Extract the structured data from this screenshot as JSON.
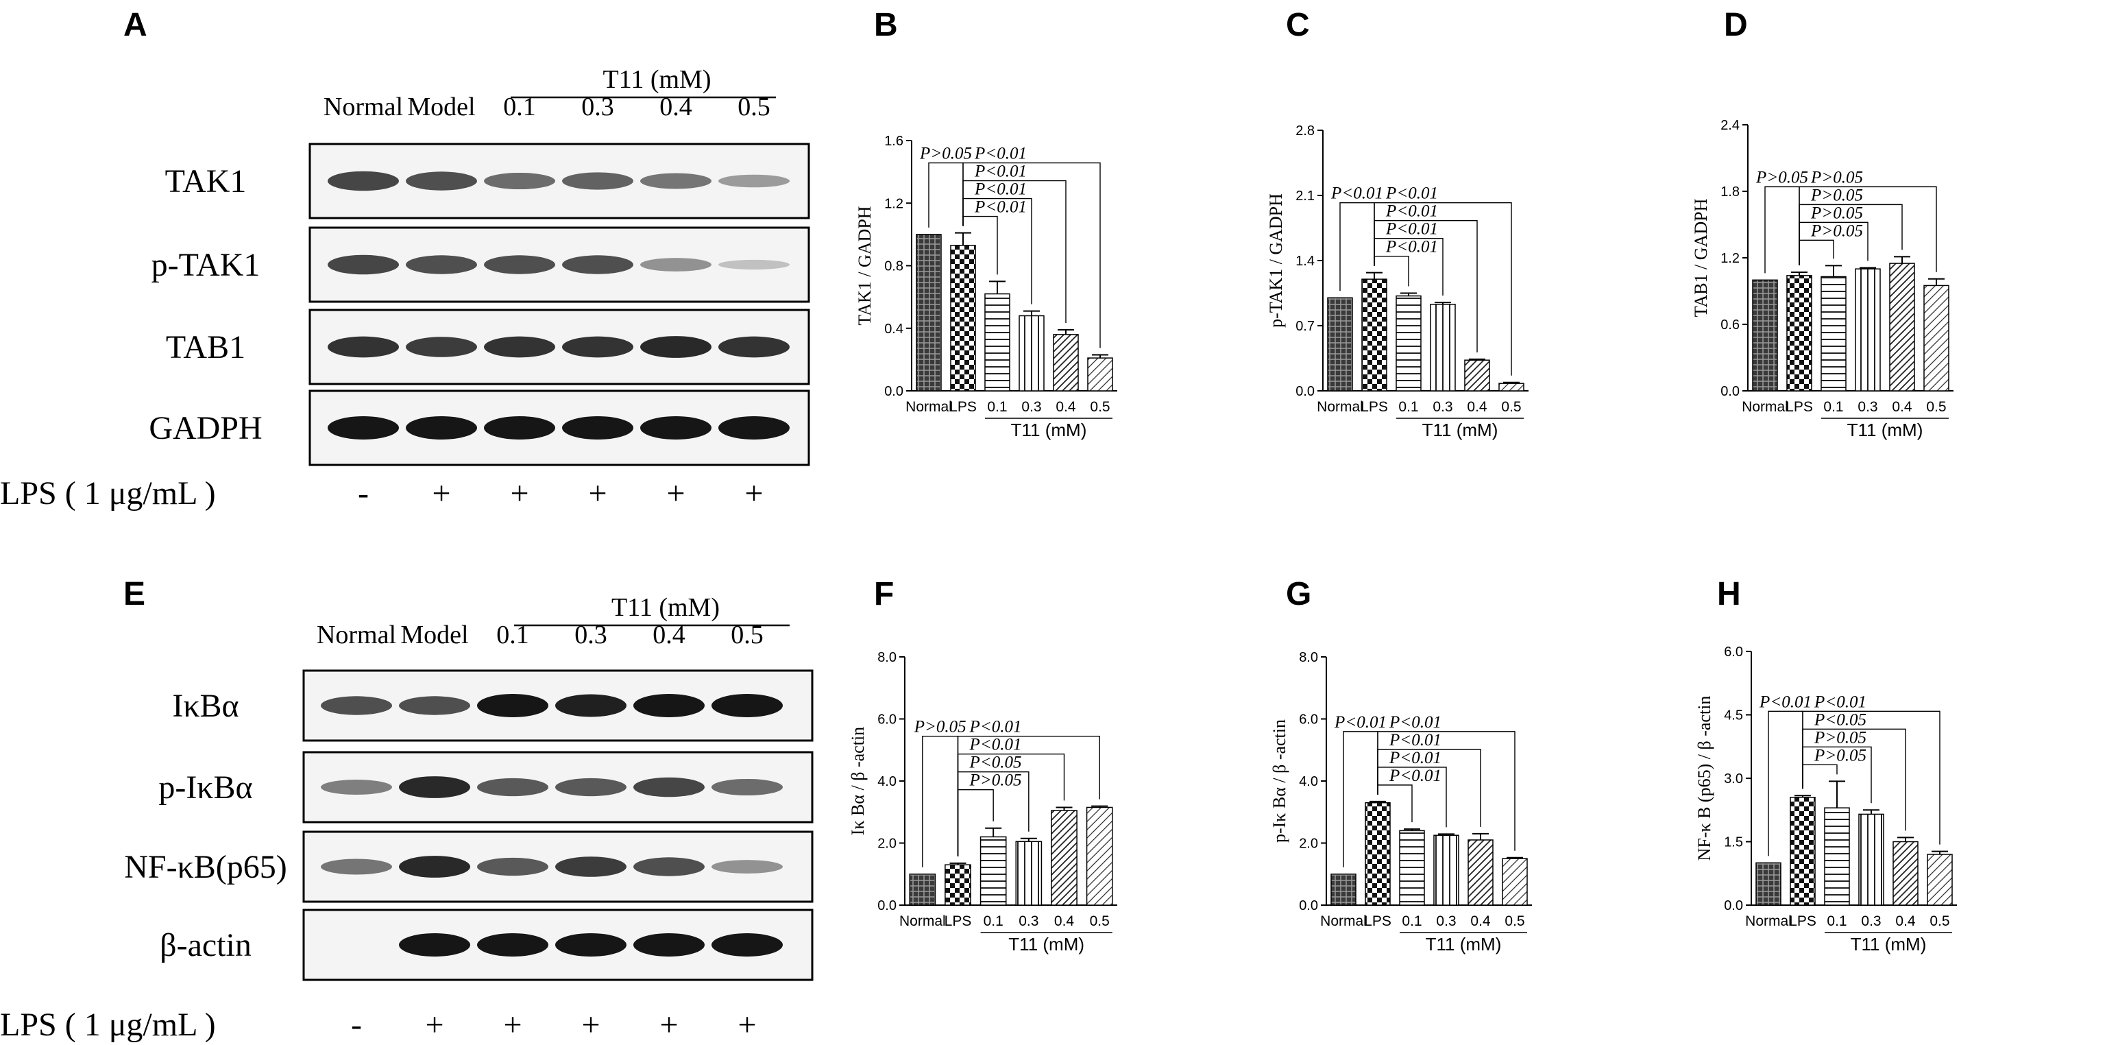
{
  "figure": {
    "panels": [
      {
        "letter": "A",
        "blot": {
          "group_label": "T11 (mM)",
          "columns": [
            "Normal",
            "Model",
            "0.1",
            "0.3",
            "0.4",
            "0.5"
          ],
          "rows": [
            {
              "label": "TAK1",
              "intensity": [
                0.75,
                0.7,
                0.55,
                0.6,
                0.5,
                0.3
              ]
            },
            {
              "label": "p-TAK1",
              "intensity": [
                0.75,
                0.7,
                0.7,
                0.7,
                0.35,
                0.1
              ]
            },
            {
              "label": "TAB1",
              "intensity": [
                0.85,
                0.8,
                0.85,
                0.85,
                0.9,
                0.85
              ]
            },
            {
              "label": "GADPH",
              "intensity": [
                1.0,
                1.0,
                1.0,
                1.0,
                1.0,
                1.0
              ]
            }
          ],
          "treatment_label": "LPS ( 1 μg/mL )",
          "treatment_signs": [
            "-",
            "+",
            "+",
            "+",
            "+",
            "+"
          ]
        }
      },
      {
        "letter": "E",
        "blot": {
          "group_label": "T11 (mM)",
          "columns": [
            "Normal",
            "Model",
            "0.1",
            "0.3",
            "0.4",
            "0.5"
          ],
          "rows": [
            {
              "label": "IκBα",
              "intensity": [
                0.7,
                0.7,
                1.0,
                0.95,
                1.0,
                1.0
              ]
            },
            {
              "label": "p-IκBα",
              "intensity": [
                0.45,
                0.9,
                0.65,
                0.65,
                0.75,
                0.55
              ]
            },
            {
              "label": "NF-κB(p65)",
              "intensity": [
                0.5,
                0.9,
                0.65,
                0.8,
                0.7,
                0.35
              ]
            },
            {
              "label": "β-actin",
              "intensity": [
                0.0,
                1.0,
                1.0,
                1.0,
                1.0,
                1.0
              ]
            }
          ],
          "treatment_label": "LPS ( 1 μg/mL )",
          "treatment_signs": [
            "-",
            "+",
            "+",
            "+",
            "+",
            "+"
          ]
        }
      }
    ]
  },
  "chart_data": [
    {
      "letter": "B",
      "type": "bar",
      "categories": [
        "Normal",
        "LPS",
        "0.1",
        "0.3",
        "0.4",
        "0.5"
      ],
      "values": [
        1.0,
        0.93,
        0.62,
        0.48,
        0.36,
        0.21
      ],
      "errors": [
        0,
        0.08,
        0.08,
        0.03,
        0.03,
        0.02
      ],
      "ylabel": "TAK1 / GADPH",
      "ylim": [
        0,
        1.6
      ],
      "yticks": [
        "0.0",
        "0.4",
        "0.8",
        "1.2",
        "1.6"
      ],
      "group_label": "T11 (mM)",
      "annotations": [
        {
          "from": "Normal",
          "to": "LPS",
          "text": "P>0.05"
        },
        {
          "from": "LPS",
          "to": "0.1",
          "text": "P<0.01"
        },
        {
          "from": "LPS",
          "to": "0.3",
          "text": "P<0.01"
        },
        {
          "from": "LPS",
          "to": "0.4",
          "text": "P<0.01"
        },
        {
          "from": "LPS",
          "to": "0.5",
          "text": "P<0.01"
        }
      ]
    },
    {
      "letter": "C",
      "type": "bar",
      "categories": [
        "Normal",
        "LPS",
        "0.1",
        "0.3",
        "0.4",
        "0.5"
      ],
      "values": [
        1.0,
        1.2,
        1.02,
        0.93,
        0.33,
        0.08
      ],
      "errors": [
        0,
        0.07,
        0.03,
        0.02,
        0.01,
        0.01
      ],
      "ylabel": "p-TAK1 / GADPH",
      "ylim": [
        0,
        2.8
      ],
      "yticks": [
        "0.0",
        "0.7",
        "1.4",
        "2.1",
        "2.8"
      ],
      "group_label": "T11 (mM)",
      "annotations": [
        {
          "from": "Normal",
          "to": "LPS",
          "text": "P<0.01"
        },
        {
          "from": "LPS",
          "to": "0.1",
          "text": "P<0.01"
        },
        {
          "from": "LPS",
          "to": "0.3",
          "text": "P<0.01"
        },
        {
          "from": "LPS",
          "to": "0.4",
          "text": "P<0.01"
        },
        {
          "from": "LPS",
          "to": "0.5",
          "text": "P<0.01"
        }
      ]
    },
    {
      "letter": "D",
      "type": "bar",
      "categories": [
        "Normal",
        "LPS",
        "0.1",
        "0.3",
        "0.4",
        "0.5"
      ],
      "values": [
        1.0,
        1.04,
        1.03,
        1.1,
        1.15,
        0.95
      ],
      "errors": [
        0,
        0.03,
        0.1,
        0.01,
        0.06,
        0.06
      ],
      "ylabel": "TAB1 / GADPH",
      "ylim": [
        0,
        2.4
      ],
      "yticks": [
        "0.0",
        "0.6",
        "1.2",
        "1.8",
        "2.4"
      ],
      "group_label": "T11 (mM)",
      "annotations": [
        {
          "from": "Normal",
          "to": "LPS",
          "text": "P>0.05"
        },
        {
          "from": "LPS",
          "to": "0.1",
          "text": "P>0.05"
        },
        {
          "from": "LPS",
          "to": "0.3",
          "text": "P>0.05"
        },
        {
          "from": "LPS",
          "to": "0.4",
          "text": "P>0.05"
        },
        {
          "from": "LPS",
          "to": "0.5",
          "text": "P>0.05"
        }
      ]
    },
    {
      "letter": "F",
      "type": "bar",
      "categories": [
        "Normal",
        "LPS",
        "0.1",
        "0.3",
        "0.4",
        "0.5"
      ],
      "values": [
        1.0,
        1.3,
        2.2,
        2.05,
        3.05,
        3.15
      ],
      "errors": [
        0,
        0.05,
        0.28,
        0.1,
        0.1,
        0.04
      ],
      "ylabel": "Iκ Bα / β -actin",
      "ylim": [
        0,
        8
      ],
      "yticks": [
        "0.0",
        "2.0",
        "4.0",
        "6.0",
        "8.0"
      ],
      "group_label": "T11 (mM)",
      "annotations": [
        {
          "from": "Normal",
          "to": "LPS",
          "text": "P>0.05"
        },
        {
          "from": "LPS",
          "to": "0.1",
          "text": "P>0.05"
        },
        {
          "from": "LPS",
          "to": "0.3",
          "text": "P<0.05"
        },
        {
          "from": "LPS",
          "to": "0.4",
          "text": "P<0.01"
        },
        {
          "from": "LPS",
          "to": "0.5",
          "text": "P<0.01"
        }
      ]
    },
    {
      "letter": "G",
      "type": "bar",
      "categories": [
        "Normal",
        "LPS",
        "0.1",
        "0.3",
        "0.4",
        "0.5"
      ],
      "values": [
        1.0,
        3.3,
        2.4,
        2.25,
        2.1,
        1.5
      ],
      "errors": [
        0,
        0.04,
        0.05,
        0.04,
        0.2,
        0.03
      ],
      "ylabel": "p-Iκ Bα / β -actin",
      "ylim": [
        0,
        8
      ],
      "yticks": [
        "0.0",
        "2.0",
        "4.0",
        "6.0",
        "8.0"
      ],
      "group_label": "T11 (mM)",
      "annotations": [
        {
          "from": "Normal",
          "to": "LPS",
          "text": "P<0.01"
        },
        {
          "from": "LPS",
          "to": "0.1",
          "text": "P<0.01"
        },
        {
          "from": "LPS",
          "to": "0.3",
          "text": "P<0.01"
        },
        {
          "from": "LPS",
          "to": "0.4",
          "text": "P<0.01"
        },
        {
          "from": "LPS",
          "to": "0.5",
          "text": "P<0.01"
        }
      ]
    },
    {
      "letter": "H",
      "type": "bar",
      "categories": [
        "Normal",
        "LPS",
        "0.1",
        "0.3",
        "0.4",
        "0.5"
      ],
      "values": [
        1.0,
        2.55,
        2.3,
        2.15,
        1.5,
        1.2
      ],
      "errors": [
        0,
        0.04,
        0.63,
        0.1,
        0.1,
        0.07
      ],
      "ylabel": "NF-κ B (p65) / β -actin",
      "ylim": [
        0,
        6
      ],
      "yticks": [
        "0.0",
        "1.5",
        "3.0",
        "4.5",
        "6.0"
      ],
      "group_label": "T11 (mM)",
      "annotations": [
        {
          "from": "Normal",
          "to": "LPS",
          "text": "P<0.01"
        },
        {
          "from": "LPS",
          "to": "0.1",
          "text": "P>0.05"
        },
        {
          "from": "LPS",
          "to": "0.3",
          "text": "P>0.05"
        },
        {
          "from": "LPS",
          "to": "0.4",
          "text": "P<0.05"
        },
        {
          "from": "LPS",
          "to": "0.5",
          "text": "P<0.01"
        }
      ]
    }
  ]
}
